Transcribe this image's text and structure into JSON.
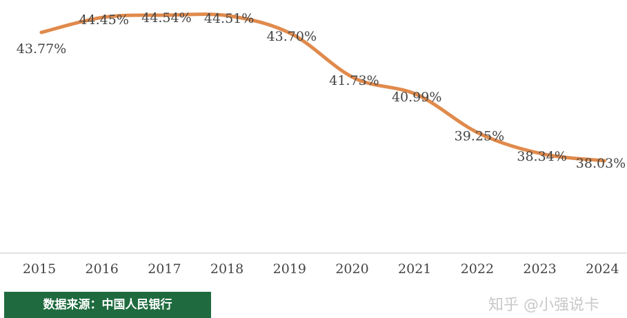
{
  "chart_data": {
    "type": "line",
    "categories": [
      "2015",
      "2016",
      "2017",
      "2018",
      "2019",
      "2020",
      "2021",
      "2022",
      "2023",
      "2024"
    ],
    "values": [
      43.77,
      44.45,
      44.54,
      44.51,
      43.7,
      41.73,
      40.99,
      39.25,
      38.34,
      38.03
    ],
    "data_labels": [
      "43.77%",
      "44.45%",
      "44.54%",
      "44.51%",
      "43.70%",
      "41.73%",
      "40.99%",
      "39.25%",
      "38.34%",
      "38.03%"
    ],
    "title": "",
    "xlabel": "",
    "ylabel": "",
    "y_unit": "%",
    "grid": false,
    "line_color": "#e08a4c",
    "axis_color": "#d9d9d9"
  },
  "source_badge": {
    "text": "数据来源：中国人民银行",
    "background": "#1f6b3f",
    "color": "#ffffff"
  },
  "watermark": {
    "text": "知乎 @小强说卡"
  }
}
